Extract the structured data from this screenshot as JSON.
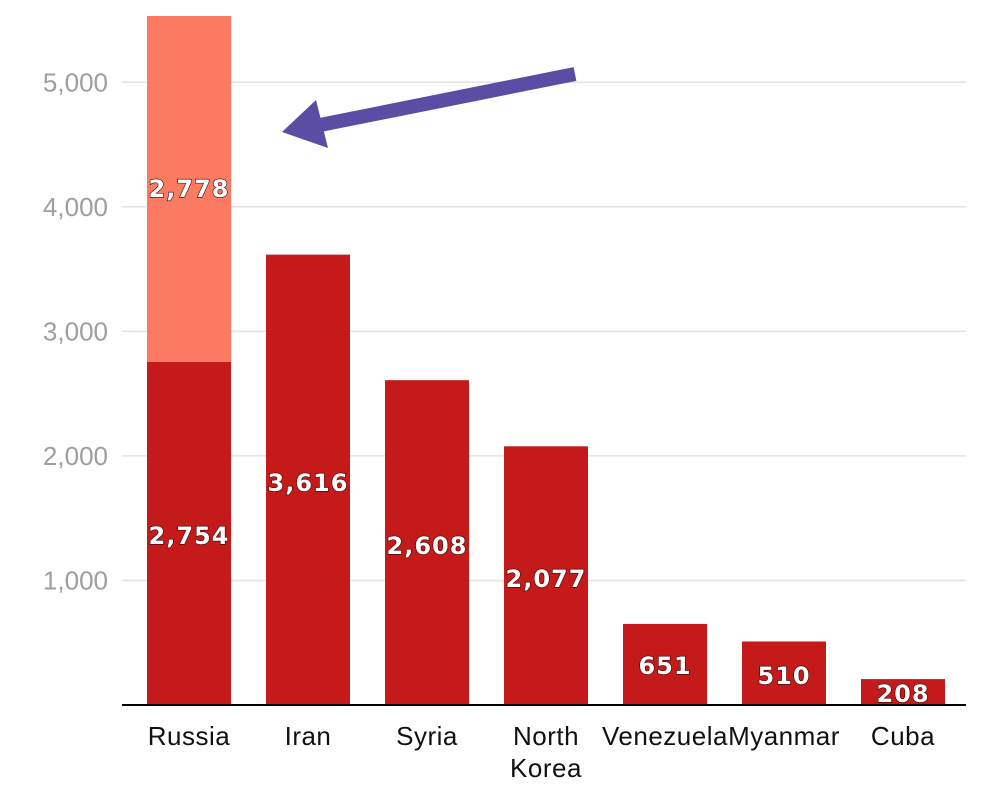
{
  "chart_data": {
    "type": "bar",
    "stacked": true,
    "title": "",
    "xlabel": "",
    "ylabel": "",
    "categories": [
      "Russia",
      "Iran",
      "Syria",
      "North Korea",
      "Venezuela",
      "Myanmar",
      "Cuba"
    ],
    "category_display": [
      [
        "Russia"
      ],
      [
        "Iran"
      ],
      [
        "Syria"
      ],
      [
        "North",
        "Korea"
      ],
      [
        "Venezuela"
      ],
      [
        "Myanmar"
      ],
      [
        "Cuba"
      ]
    ],
    "series": [
      {
        "values": [
          2754,
          3616,
          2608,
          2077,
          651,
          510,
          208
        ],
        "labels": [
          "2,754",
          "3,616",
          "2,608",
          "2,077",
          "651",
          "510",
          "208"
        ],
        "color": "#c51a1a"
      },
      {
        "values": [
          2778,
          0,
          0,
          0,
          0,
          0,
          0
        ],
        "labels": [
          "2,778",
          "",
          "",
          "",
          "",
          "",
          ""
        ],
        "color": "#fa7b61"
      }
    ],
    "ylim": [
      0,
      5532
    ],
    "yticks": [
      {
        "value": 1000,
        "label": "1,000"
      },
      {
        "value": 2000,
        "label": "2,000"
      },
      {
        "value": 3000,
        "label": "3,000"
      },
      {
        "value": 4000,
        "label": "4,000"
      },
      {
        "value": 5000,
        "label": "5,000"
      }
    ],
    "grid": true,
    "legend": "none",
    "annotations": [
      {
        "type": "arrow",
        "points_to": "Russia",
        "color": "#5b4da3"
      }
    ]
  }
}
